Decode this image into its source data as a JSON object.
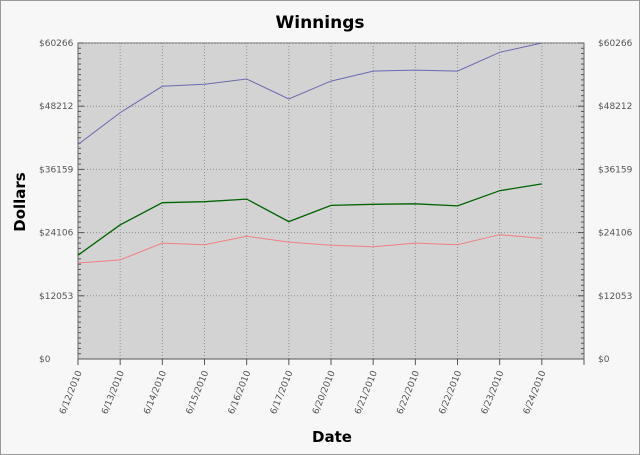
{
  "chart_data": {
    "type": "line",
    "title": "Winnings",
    "xlabel": "Date",
    "ylabel": "Dollars",
    "x": [
      "6/12/2010",
      "6/13/2010",
      "6/14/2010",
      "6/15/2010",
      "6/16/2010",
      "6/17/2010",
      "6/20/2010",
      "6/21/2010",
      "6/22/2010",
      "6/22/2010",
      "6/23/2010",
      "6/24/2010"
    ],
    "ylim": [
      0,
      60266
    ],
    "yticks": [
      0,
      12053,
      24106,
      36159,
      48212,
      60266
    ],
    "ytick_labels": [
      "$0",
      "$12053",
      "$24106",
      "$36159",
      "$48212",
      "$60266"
    ],
    "grid": true,
    "series": [
      {
        "color": "#6a6ab0",
        "values": [
          40900,
          47000,
          52000,
          52400,
          53400,
          49600,
          53000,
          54900,
          55100,
          54900,
          58500,
          60266
        ]
      },
      {
        "color": "#006400",
        "values": [
          19800,
          25600,
          29800,
          30000,
          30500,
          26200,
          29300,
          29500,
          29600,
          29200,
          32100,
          33400
        ]
      },
      {
        "color": "#f08080",
        "values": [
          18300,
          18900,
          22100,
          21800,
          23400,
          22300,
          21700,
          21400,
          22100,
          21800,
          23700,
          23000
        ]
      }
    ],
    "colors": {
      "plot_background": "#d3d3d3",
      "page_background": "#f7f7f7",
      "grid": "#909090"
    }
  }
}
